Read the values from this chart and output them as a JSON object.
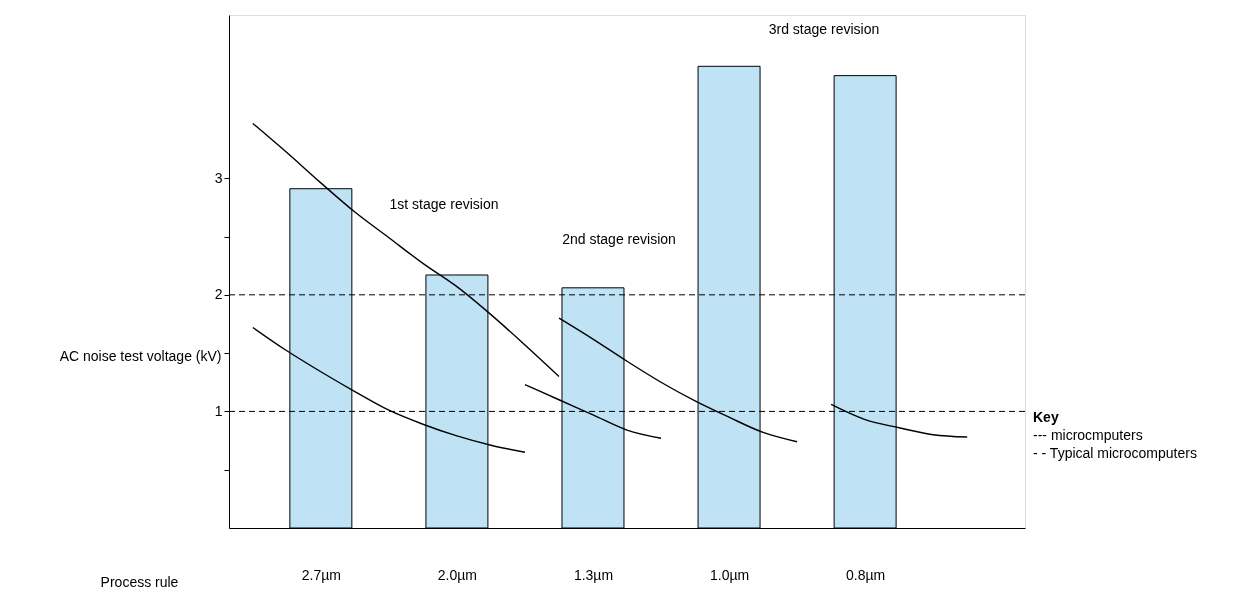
{
  "chart_data": {
    "type": "bar",
    "xlabel": "Process rule",
    "ylabel": "AC noise test voltage (kV)",
    "categories": [
      null,
      null,
      "2.7µm",
      null,
      null,
      null,
      "2.0µm",
      null,
      null,
      null,
      "1.3µm",
      null,
      null,
      null,
      "1.0µm",
      null,
      null,
      null,
      "0.8µm",
      null,
      null,
      null,
      null
    ],
    "ylim": [
      0,
      4.4
    ],
    "yticks": [
      {
        "value": 0.5,
        "label": null
      },
      1,
      {
        "value": 1.5,
        "label": null
      },
      2,
      {
        "value": 2.5,
        "label": null
      },
      3
    ],
    "series": [
      {
        "color": "#bfe3f5",
        "values": [
          null,
          null,
          2.91,
          null,
          null,
          null,
          2.17,
          null,
          null,
          null,
          2.06,
          null,
          null,
          null,
          3.96,
          null,
          null,
          null,
          3.88,
          null,
          null,
          null,
          null
        ]
      },
      {
        "type": "line",
        "color": "#000000",
        "values": [
          3.47,
          3.22,
          2.96,
          2.71,
          2.49,
          2.27,
          2.07,
          1.83,
          1.57,
          1.3,
          null,
          null,
          null,
          null,
          null,
          null,
          null,
          null,
          null,
          null,
          null,
          null,
          null
        ]
      },
      {
        "type": "line",
        "color": "#000000",
        "values": [
          null,
          null,
          null,
          null,
          null,
          null,
          null,
          null,
          null,
          1.8,
          1.62,
          1.43,
          1.25,
          1.09,
          0.95,
          0.82,
          0.74,
          null,
          null,
          null,
          null,
          null,
          null
        ]
      },
      {
        "type": "line",
        "color": "#000000",
        "values": [
          1.72,
          1.52,
          1.34,
          1.17,
          1.01,
          0.89,
          0.79,
          0.71,
          0.65,
          null,
          null,
          null,
          null,
          null,
          null,
          null,
          null,
          null,
          null,
          null,
          null,
          null,
          null
        ]
      },
      {
        "type": "line",
        "color": "#000000",
        "values": [
          null,
          null,
          null,
          null,
          null,
          null,
          null,
          null,
          1.23,
          1.1,
          0.97,
          0.84,
          0.77,
          null,
          null,
          null,
          null,
          null,
          null,
          null,
          null,
          null,
          null
        ]
      },
      {
        "type": "line",
        "color": "#000000",
        "values": [
          null,
          null,
          null,
          null,
          null,
          null,
          null,
          null,
          null,
          null,
          null,
          null,
          null,
          null,
          null,
          null,
          null,
          1.06,
          0.93,
          0.86,
          0.8,
          0.78,
          null
        ]
      }
    ],
    "ref_lines": [
      {
        "axis": "y",
        "value": 1,
        "line_style": "dashed",
        "color": "#000000"
      },
      {
        "axis": "y",
        "value": 2,
        "line_style": "dashed",
        "color": "#000000"
      }
    ],
    "annotations": [
      "1st stage revision",
      "2nd stage revision",
      "3rd stage revision",
      "Key",
      "---    microcmputers",
      "- -    Typical microcomputers"
    ]
  }
}
